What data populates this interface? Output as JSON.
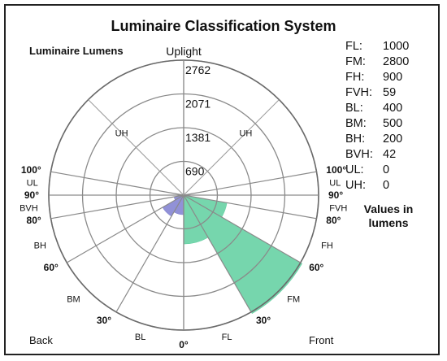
{
  "chart_data": {
    "type": "polar",
    "title": "Luminaire Classification System",
    "subtitle": "Luminaire Lumens",
    "units_note": [
      "Values in",
      "lumens"
    ],
    "ring_values": [
      690,
      1381,
      2071,
      2762
    ],
    "top_label": "Uplight",
    "corner_labels": {
      "back": "Back",
      "front": "Front"
    },
    "zone_labels": [
      {
        "text": "UH",
        "angle": -135,
        "bold": false
      },
      {
        "text": "UH",
        "angle": 135,
        "bold": false
      },
      {
        "text": "UL",
        "angle": -95,
        "bold": false
      },
      {
        "text": "UL",
        "angle": 95,
        "bold": false
      },
      {
        "text": "BVH",
        "angle": -85,
        "bold": false
      },
      {
        "text": "FVH",
        "angle": 85,
        "bold": false
      },
      {
        "text": "BH",
        "angle": -70,
        "bold": false
      },
      {
        "text": "FH",
        "angle": 70,
        "bold": false
      },
      {
        "text": "BM",
        "angle": -45,
        "bold": false
      },
      {
        "text": "FM",
        "angle": 45,
        "bold": false
      },
      {
        "text": "BL",
        "angle": -15,
        "bold": false
      },
      {
        "text": "FL",
        "angle": 15,
        "bold": false
      }
    ],
    "angle_labels": [
      {
        "text": "0°",
        "angle": 0
      },
      {
        "text": "30°",
        "angle": -30
      },
      {
        "text": "30°",
        "angle": 30
      },
      {
        "text": "60°",
        "angle": -60
      },
      {
        "text": "60°",
        "angle": 60
      },
      {
        "text": "80°",
        "angle": -80
      },
      {
        "text": "80°",
        "angle": 80
      },
      {
        "text": "90°",
        "angle": -90
      },
      {
        "text": "90°",
        "angle": 90
      },
      {
        "text": "100°",
        "angle": -100
      },
      {
        "text": "100°",
        "angle": 100
      }
    ],
    "zones": [
      {
        "name": "FL",
        "from": 0,
        "to": 30,
        "value": 1000,
        "color": "#5ecf9f"
      },
      {
        "name": "FM",
        "from": 30,
        "to": 60,
        "value": 2800,
        "color": "#5ecf9f"
      },
      {
        "name": "FH",
        "from": 60,
        "to": 80,
        "value": 900,
        "color": "#5ecf9f"
      },
      {
        "name": "FVH",
        "from": 80,
        "to": 90,
        "value": 59,
        "color": "#bfbfbf"
      },
      {
        "name": "BL",
        "from": -30,
        "to": 0,
        "value": 400,
        "color": "#7e7ed0"
      },
      {
        "name": "BM",
        "from": -60,
        "to": -30,
        "value": 500,
        "color": "#7e7ed0"
      },
      {
        "name": "BH",
        "from": -80,
        "to": -60,
        "value": 200,
        "color": "#7e7ed0"
      },
      {
        "name": "BVH",
        "from": -90,
        "to": -80,
        "value": 42,
        "color": "#bfbfbf"
      },
      {
        "name": "UL",
        "from": 90,
        "to": 100,
        "value": 0,
        "color": "#bfbfbf"
      },
      {
        "name": "UH",
        "from": 100,
        "to": 180,
        "value": 0,
        "color": "#bfbfbf"
      }
    ],
    "value_table": [
      {
        "key": "FL:",
        "value": "1000"
      },
      {
        "key": "FM:",
        "value": "2800"
      },
      {
        "key": "FH:",
        "value": "900"
      },
      {
        "key": "FVH:",
        "value": "59"
      },
      {
        "key": "BL:",
        "value": "400"
      },
      {
        "key": "BM:",
        "value": "500"
      },
      {
        "key": "BH:",
        "value": "200"
      },
      {
        "key": "BVH:",
        "value": "42"
      },
      {
        "key": "UL:",
        "value": "0"
      },
      {
        "key": "UH:",
        "value": "0"
      }
    ]
  }
}
